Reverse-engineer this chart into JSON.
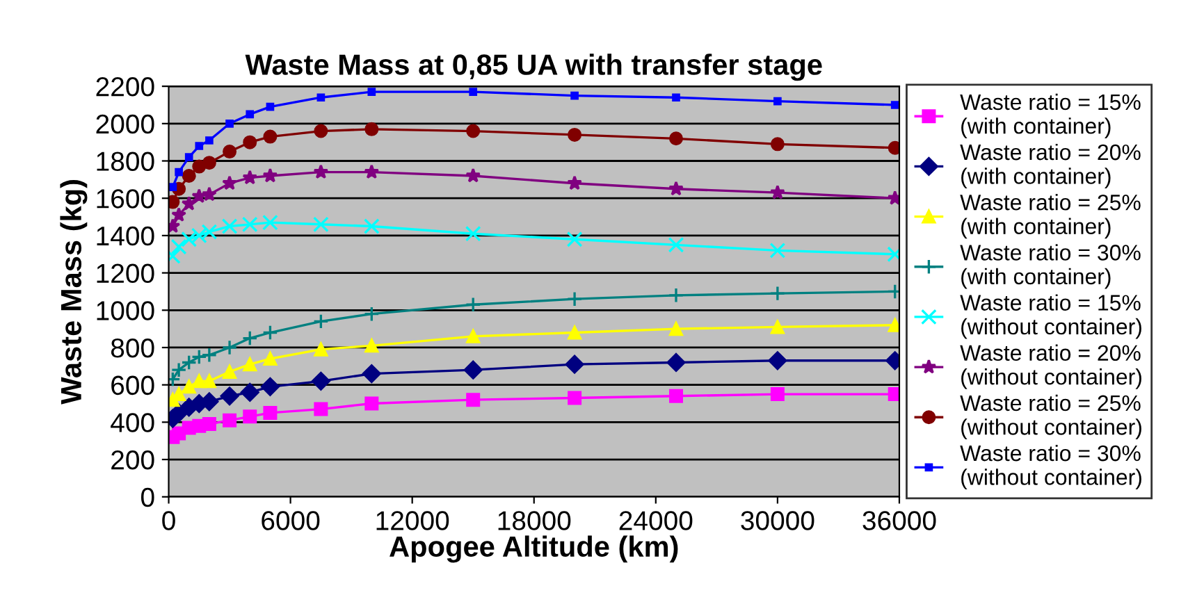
{
  "chart_data": {
    "type": "line",
    "title": "Waste Mass at 0,85 UA with transfer stage",
    "xlabel": "Apogee Altitude (km)",
    "ylabel": "Waste Mass (kg)",
    "x": [
      200,
      500,
      1000,
      1500,
      2000,
      3000,
      4000,
      5000,
      7500,
      10000,
      15000,
      20000,
      25000,
      30000,
      35786
    ],
    "xlim": [
      0,
      36000
    ],
    "xticks": [
      0,
      6000,
      12000,
      18000,
      24000,
      30000,
      36000
    ],
    "ylim": [
      0,
      2200
    ],
    "yticks": [
      0,
      200,
      400,
      600,
      800,
      1000,
      1200,
      1400,
      1600,
      1800,
      2000,
      2200
    ],
    "grid": "y",
    "legend": "right",
    "series": [
      {
        "name": "Waste ratio = 15%\n(with container)",
        "color": "#ff00ff",
        "marker": "square",
        "values": [
          320,
          340,
          370,
          380,
          390,
          410,
          430,
          450,
          470,
          500,
          520,
          530,
          540,
          550,
          550
        ]
      },
      {
        "name": "Waste ratio = 20%\n(with container)",
        "color": "#000080",
        "marker": "diamond",
        "values": [
          420,
          450,
          480,
          500,
          510,
          540,
          560,
          590,
          620,
          660,
          680,
          710,
          720,
          730,
          730
        ]
      },
      {
        "name": "Waste ratio = 25%\n(with container)",
        "color": "#ffff00",
        "marker": "triangle",
        "values": [
          520,
          550,
          590,
          620,
          620,
          670,
          710,
          740,
          790,
          810,
          860,
          880,
          900,
          910,
          920
        ]
      },
      {
        "name": "Waste ratio = 30%\n(with container)",
        "color": "#008080",
        "marker": "plus",
        "values": [
          630,
          680,
          720,
          750,
          760,
          800,
          850,
          880,
          940,
          980,
          1030,
          1060,
          1080,
          1090,
          1100
        ]
      },
      {
        "name": "Waste ratio = 15%\n(without container)",
        "color": "#00ffff",
        "marker": "cross",
        "values": [
          1290,
          1340,
          1380,
          1400,
          1420,
          1450,
          1460,
          1470,
          1460,
          1450,
          1410,
          1380,
          1350,
          1320,
          1300
        ]
      },
      {
        "name": "Waste ratio = 20%\n(without container)",
        "color": "#800080",
        "marker": "star",
        "values": [
          1450,
          1510,
          1570,
          1610,
          1620,
          1680,
          1710,
          1720,
          1740,
          1740,
          1720,
          1680,
          1650,
          1630,
          1600
        ]
      },
      {
        "name": "Waste ratio = 25%\n(without container)",
        "color": "#800000",
        "marker": "circle",
        "values": [
          1580,
          1650,
          1720,
          1770,
          1790,
          1850,
          1900,
          1930,
          1960,
          1970,
          1960,
          1940,
          1920,
          1890,
          1870
        ]
      },
      {
        "name": "Waste ratio = 30%\n(without container)",
        "color": "#0000ff",
        "marker": "square",
        "values": [
          1660,
          1740,
          1820,
          1880,
          1910,
          2000,
          2050,
          2090,
          2140,
          2170,
          2170,
          2150,
          2140,
          2120,
          2100
        ]
      }
    ]
  }
}
